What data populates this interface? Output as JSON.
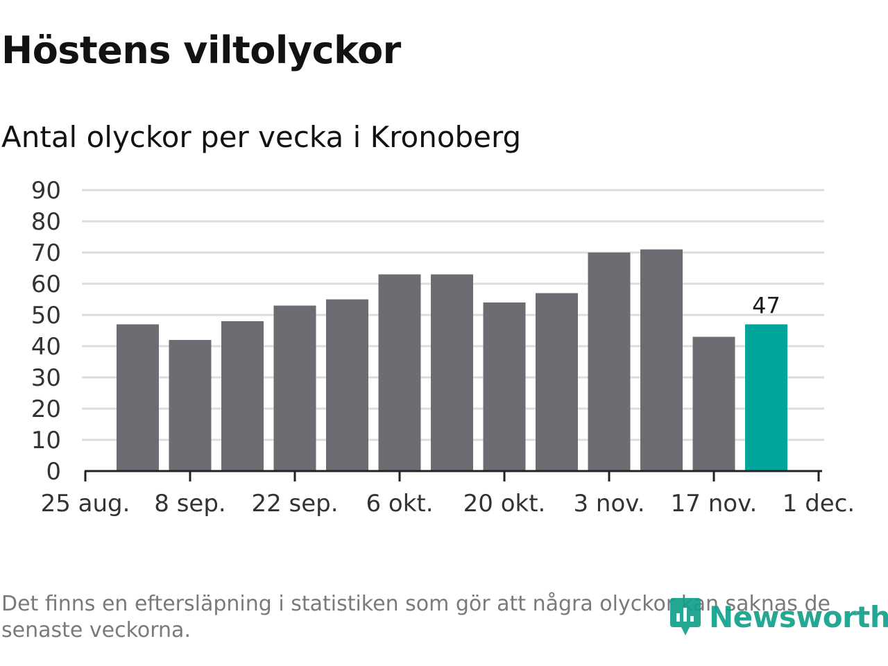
{
  "header": {
    "title": "Höstens viltolyckor",
    "subtitle": "Antal olyckor per vecka i Kronoberg"
  },
  "footnote": "Det finns en eftersläpning i statistiken som gör att några olyckor kan saknas de senaste veckorna.",
  "logo": {
    "text": "Newsworthy"
  },
  "colors": {
    "bar": "#6d6c72",
    "highlight": "#00a59b",
    "grid": "#dddddd",
    "axis": "#222222",
    "text": "#333333",
    "logo": "#12a08a"
  },
  "chart_data": {
    "type": "bar",
    "title": "Höstens viltolyckor",
    "subtitle": "Antal olyckor per vecka i Kronoberg",
    "xlabel": "",
    "ylabel": "",
    "ylim": [
      0,
      90
    ],
    "yticks": [
      0,
      10,
      20,
      30,
      40,
      50,
      60,
      70,
      80,
      90
    ],
    "values": [
      47,
      42,
      48,
      53,
      55,
      63,
      63,
      54,
      57,
      70,
      71,
      43,
      47
    ],
    "highlight_index": 12,
    "highlight_label": "47",
    "xticks": [
      "25 aug.",
      "8 sep.",
      "22 sep.",
      "6 okt.",
      "20 okt.",
      "3 nov.",
      "17 nov.",
      "1 dec."
    ],
    "grid": true
  }
}
